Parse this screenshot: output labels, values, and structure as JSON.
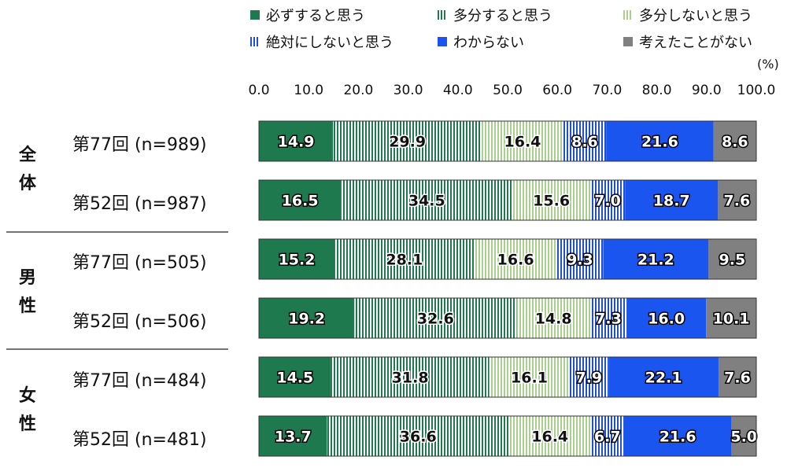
{
  "legend": {
    "items": [
      {
        "label": "必ずすると思う"
      },
      {
        "label": "多分すると思う"
      },
      {
        "label": "多分しないと思う"
      },
      {
        "label": "絶対にしないと思う"
      },
      {
        "label": "わからない"
      },
      {
        "label": "考えたことがない"
      }
    ]
  },
  "unit_label": "(%)",
  "groups": [
    {
      "label": "全体",
      "chars": [
        "全",
        "体"
      ]
    },
    {
      "label": "男性",
      "chars": [
        "男",
        "性"
      ]
    },
    {
      "label": "女性",
      "chars": [
        "女",
        "性"
      ]
    }
  ],
  "rows": [
    {
      "label": "第77回 (n=989)"
    },
    {
      "label": "第52回 (n=987)"
    },
    {
      "label": "第77回 (n=505)"
    },
    {
      "label": "第52回 (n=506)"
    },
    {
      "label": "第77回 (n=484)"
    },
    {
      "label": "第52回 (n=481)"
    }
  ],
  "colors": {
    "必ずすると思う": "#1e7a4e",
    "多分すると思う": "#1e7a4e",
    "多分しないと思う": "#a8cf8e",
    "絶対にしないと思う": "#1f4fd6",
    "わからない": "#1a55f0",
    "考えたことがない": "#808080"
  },
  "chart_data": {
    "type": "bar",
    "orientation": "horizontal",
    "stacked": true,
    "xlim": [
      0,
      100
    ],
    "x_ticks": [
      "0.0",
      "10.0",
      "20.0",
      "30.0",
      "40.0",
      "50.0",
      "60.0",
      "70.0",
      "80.0",
      "90.0",
      "100.0"
    ],
    "categories": [
      "第77回 (n=989)",
      "第52回 (n=987)",
      "第77回 (n=505)",
      "第52回 (n=506)",
      "第77回 (n=484)",
      "第52回 (n=481)"
    ],
    "legend_position": "top",
    "series": [
      {
        "name": "必ずすると思う",
        "values": [
          14.9,
          16.5,
          15.2,
          19.2,
          14.5,
          13.7
        ]
      },
      {
        "name": "多分すると思う",
        "values": [
          29.9,
          34.5,
          28.1,
          32.6,
          31.8,
          36.6
        ]
      },
      {
        "name": "多分しないと思う",
        "values": [
          16.4,
          15.6,
          16.6,
          14.8,
          16.1,
          16.4
        ]
      },
      {
        "name": "絶対にしないと思う",
        "values": [
          8.6,
          7.0,
          9.3,
          7.3,
          7.9,
          6.7
        ]
      },
      {
        "name": "わからない",
        "values": [
          21.6,
          18.7,
          21.2,
          16.0,
          22.1,
          21.6
        ]
      },
      {
        "name": "考えたことがない",
        "values": [
          8.6,
          7.6,
          9.5,
          10.1,
          7.6,
          5.0
        ]
      }
    ]
  }
}
